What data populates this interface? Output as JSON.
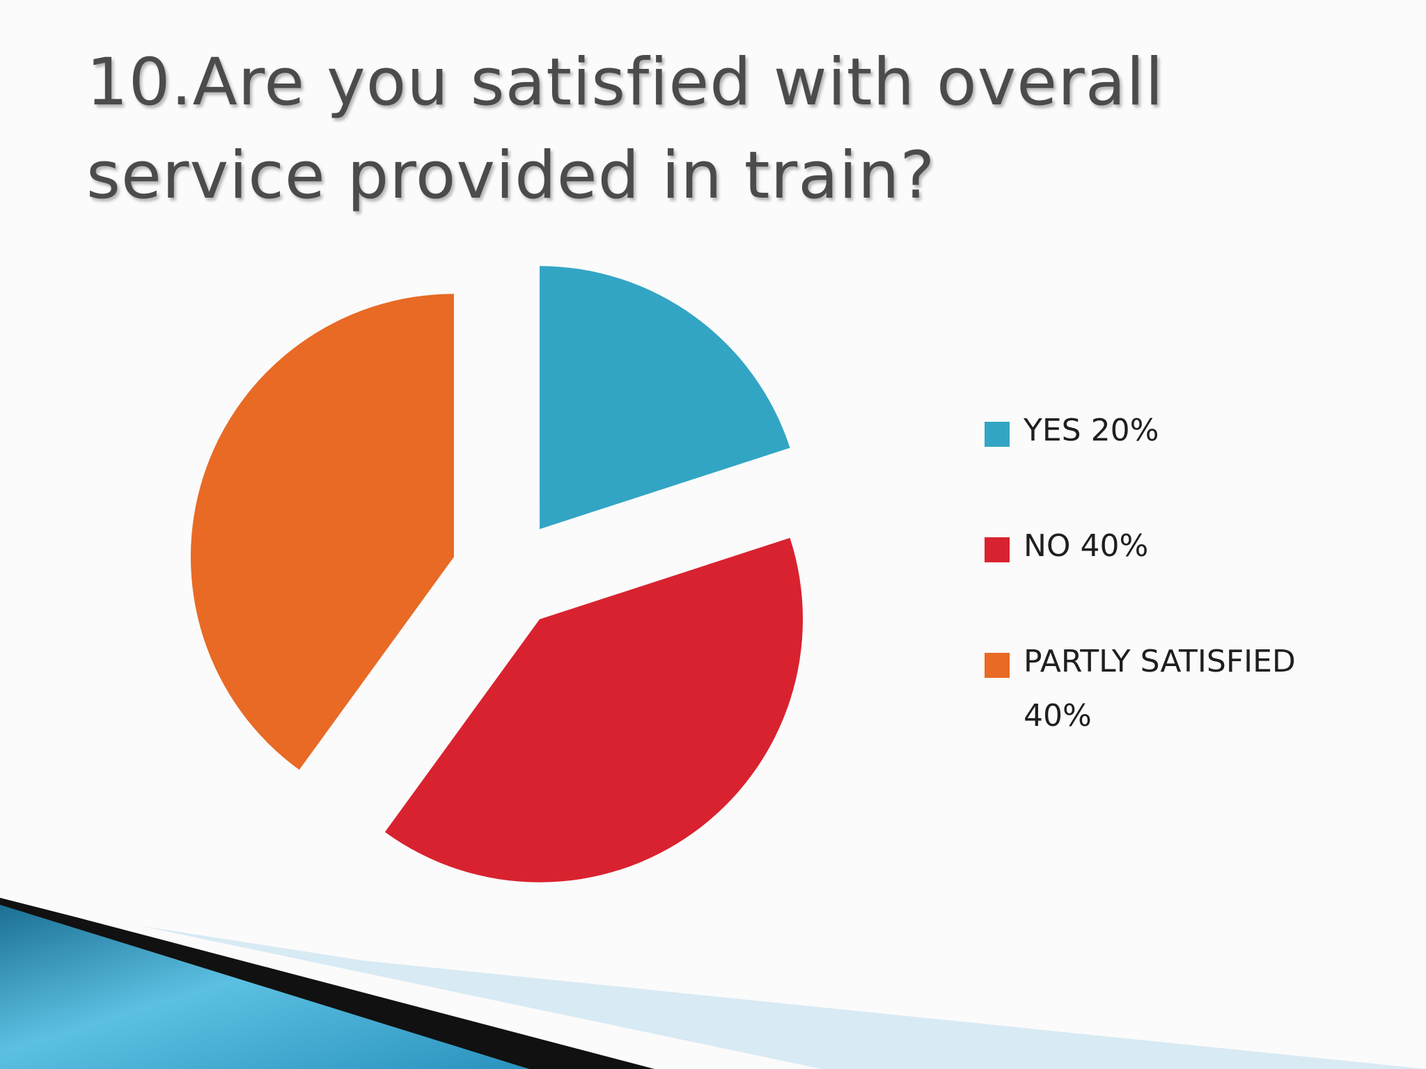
{
  "slide": {
    "title": "10.Are you satisfied with overall service provided in train?"
  },
  "chart_data": {
    "type": "pie",
    "exploded": true,
    "start_angle_deg": 0,
    "direction": "clockwise",
    "legend_position": "right",
    "slices": [
      {
        "legend_label": "YES 20%",
        "value": 20,
        "color": "#33a5c4"
      },
      {
        "legend_label": "NO 40%",
        "value": 40,
        "color": "#d9222f"
      },
      {
        "legend_label": "PARTLY SATISFIED 40%",
        "value": 40,
        "color": "#e86a24"
      }
    ]
  },
  "colors": {
    "background": "#fbfbfb",
    "title_text": "#4b4b4b",
    "legend_text": "#1f1f1f",
    "ribbon_blue": "#2f9cc4",
    "ribbon_black": "#111111",
    "ribbon_light": "#d6e9f3"
  }
}
